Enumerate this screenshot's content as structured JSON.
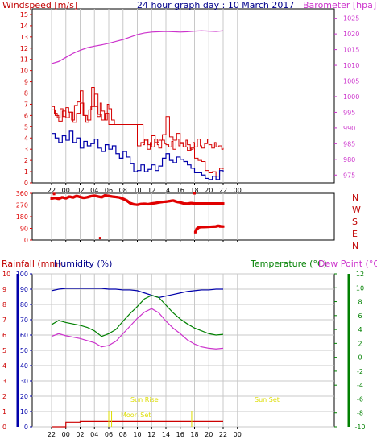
{
  "title": "24 hour graph day : 10 March 2017",
  "colors": {
    "wind": "#d40000",
    "gust": "#d40000",
    "avg_wind": "#0000aa",
    "baro": "#cc33cc",
    "direction": "#e00000",
    "humidity": "#0000aa",
    "temperature": "#008000",
    "dewpoint": "#cc33cc",
    "rain": "#cc0000",
    "sun": "#dddd00",
    "axis": "#000000",
    "grid": "#c8c8c8"
  },
  "labels": {
    "windspeed": "Windspeed [m/s]",
    "barometer": "Barometer [hpa]",
    "rainfall": "Rainfall (mm)",
    "humidity": "Humidity (%)",
    "temperature": "Temperature (°C)",
    "dewpoint": "Dew Point (°C)",
    "sun_rise": "Sun Rise",
    "sun_set": "Sun Set",
    "moon_set": "Moon Set",
    "compass": [
      "N",
      "W",
      "S",
      "E",
      "N"
    ]
  },
  "chart_data": [
    {
      "id": "wind",
      "type": "line",
      "x_ticks": [
        "22",
        "00",
        "02",
        "04",
        "06",
        "08",
        "10",
        "12",
        "14",
        "16",
        "18",
        "20",
        "22",
        "00"
      ],
      "y_left": {
        "label": "Windspeed [m/s]",
        "ticks": [
          "0",
          "1",
          "2",
          "3",
          "4",
          "5",
          "6",
          "7",
          "8",
          "9",
          "10",
          "11",
          "12",
          "13",
          "14",
          "15"
        ],
        "ylim": [
          0,
          15.5
        ]
      },
      "y_right": {
        "label": "Barometer [hpa]",
        "ticks": [
          "975",
          "980",
          "985",
          "990",
          "995",
          "1000",
          "1005",
          "1010",
          "1015",
          "1020",
          "1025"
        ],
        "ylim": [
          972.5,
          1028
        ]
      },
      "series": [
        {
          "key": "gust",
          "x": [
            0.0,
            0.4,
            0.8,
            1.2,
            1.6,
            2.0,
            2.4,
            2.8,
            3.2,
            3.6,
            4.0,
            4.4,
            4.8,
            5.2,
            5.6,
            6.0,
            6.4,
            6.8,
            7.0,
            7.4,
            7.8,
            8.0,
            8.4,
            8.8,
            9.0,
            9.4,
            9.8,
            10.0,
            10.4,
            10.8,
            11.0,
            11.4,
            11.8,
            12.0,
            12.4,
            12.8,
            13.0,
            13.4,
            13.8,
            14.0,
            14.4,
            14.8,
            15.0,
            15.4,
            15.8,
            16.0,
            16.4,
            16.8,
            17.0,
            17.4,
            17.8,
            18.0,
            18.4,
            18.8,
            19.0,
            19.4,
            19.8,
            20.0,
            20.4,
            20.8,
            21.0,
            21.4,
            21.8,
            22.0,
            22.4,
            22.8,
            23.0,
            23.4,
            23.8,
            24.0
          ],
          "values": [
            6.8,
            6.2,
            5.8,
            6.6,
            5.9,
            6.7,
            6.3,
            5.6,
            6.9,
            7.2,
            8.2,
            6.0,
            5.4,
            6.5,
            8.5,
            6.8,
            5.9,
            7.1,
            6.4,
            5.6,
            7.0,
            6.6,
            5.6,
            5.2,
            5.2,
            5.2,
            5.2,
            5.2,
            5.2,
            5.2,
            5.2,
            5.2,
            5.2,
            5.2,
            5.2,
            3.4,
            3.8,
            3.0,
            3.6,
            3.2,
            3.9,
            3.4,
            3.1,
            3.8,
            3.5,
            3.4,
            3.2,
            3.7,
            3.0,
            3.9,
            3.3,
            3.5,
            3.2,
            3.8,
            3.4,
            3.0,
            3.6,
            3.2,
            3.9,
            3.3,
            3.1,
            3.5,
            3.9,
            3.4,
            3.1,
            3.6,
            3.2,
            3.3,
            3.0,
            3.1
          ],
          "name": ""
        },
        {
          "key": "wind_red",
          "x": [
            0.0,
            0.5,
            1.0,
            1.5,
            2.0,
            2.5,
            3.0,
            3.5,
            4.0,
            4.5,
            5.0,
            5.5,
            6.0,
            6.5,
            7.0,
            7.5,
            8.0,
            8.5,
            9.0,
            9.5,
            10.0,
            10.5,
            11.0,
            11.5,
            12.0,
            12.5,
            13.0,
            13.5,
            14.0,
            14.5,
            15.0,
            15.5,
            16.0,
            16.5,
            17.0,
            17.5,
            18.0,
            18.5,
            19.0,
            19.5,
            20.0,
            20.5,
            21.0,
            21.5,
            22.0,
            22.5,
            23.0,
            23.5,
            24.0
          ],
          "values": [
            6.5,
            6.0,
            5.5,
            6.4,
            5.8,
            6.3,
            5.4,
            6.2,
            7.1,
            6.0,
            5.6,
            6.8,
            7.9,
            6.1,
            5.6,
            6.2,
            5.2,
            5.2,
            5.2,
            5.2,
            5.2,
            5.2,
            5.2,
            5.2,
            3.3,
            3.6,
            3.9,
            3.4,
            4.2,
            3.6,
            3.8,
            4.3,
            5.9,
            4.1,
            3.8,
            4.4,
            3.6,
            3.2,
            2.9,
            3.1,
            2.2,
            2.0,
            1.9,
            1.1,
            0.9,
            1.0,
            0.6,
            1.3,
            1.2
          ],
          "name": ""
        },
        {
          "key": "avg_wind",
          "x": [
            0.0,
            0.5,
            1.0,
            1.5,
            2.0,
            2.5,
            3.0,
            3.5,
            4.0,
            4.5,
            5.0,
            5.5,
            6.0,
            6.5,
            7.0,
            7.5,
            8.0,
            8.5,
            9.0,
            9.5,
            10.0,
            10.5,
            11.0,
            11.5,
            12.0,
            12.5,
            13.0,
            13.5,
            14.0,
            14.5,
            15.0,
            15.5,
            16.0,
            16.5,
            17.0,
            17.5,
            18.0,
            18.5,
            19.0,
            19.5,
            20.0,
            20.5,
            21.0,
            21.5,
            22.0,
            22.5,
            23.0,
            23.5,
            24.0
          ],
          "values": [
            4.4,
            4.0,
            3.6,
            4.2,
            3.8,
            4.6,
            3.6,
            4.0,
            3.1,
            3.7,
            3.3,
            3.5,
            3.9,
            3.1,
            2.8,
            3.4,
            3.0,
            3.3,
            2.6,
            2.2,
            2.8,
            2.3,
            1.7,
            1.0,
            1.1,
            1.6,
            1.0,
            1.2,
            1.6,
            1.1,
            1.5,
            2.2,
            2.6,
            2.0,
            1.8,
            2.3,
            2.1,
            1.9,
            1.6,
            1.3,
            0.9,
            0.9,
            0.7,
            0.4,
            0.3,
            0.6,
            0.3,
            1.1,
            1.0
          ],
          "name": ""
        },
        {
          "key": "baro",
          "axis": "right",
          "x": [
            0,
            1,
            2,
            3,
            4,
            5,
            6,
            7,
            8,
            9,
            10,
            11,
            12,
            13,
            14,
            15,
            16,
            17,
            18,
            19,
            20,
            21,
            22,
            23,
            24
          ],
          "values": [
            1010.5,
            1011.2,
            1012.5,
            1013.8,
            1014.8,
            1015.6,
            1016.1,
            1016.5,
            1017.0,
            1017.6,
            1018.2,
            1019.0,
            1019.8,
            1020.3,
            1020.6,
            1020.7,
            1020.8,
            1020.7,
            1020.6,
            1020.7,
            1020.9,
            1021.0,
            1020.9,
            1020.8,
            1021.0
          ],
          "name": ""
        }
      ]
    },
    {
      "id": "direction",
      "type": "scatter",
      "x_ticks": [
        "22",
        "00",
        "02",
        "04",
        "06",
        "08",
        "10",
        "12",
        "14",
        "16",
        "18",
        "20",
        "22",
        "00"
      ],
      "y_left": {
        "ticks": [
          "0",
          "90",
          "180",
          "270",
          "360"
        ],
        "ylim": [
          0,
          360
        ]
      },
      "y_right": {
        "ticks": [
          "N",
          "W",
          "S",
          "E",
          "N"
        ]
      },
      "series": [
        {
          "key": "dir",
          "x": [
            0.0,
            0.5,
            1.0,
            1.5,
            2.0,
            2.5,
            3.0,
            3.5,
            4.0,
            4.5,
            5.0,
            5.5,
            6.0,
            6.5,
            7.0,
            7.5,
            8.0,
            8.5,
            9.0,
            9.5,
            10.0,
            10.5,
            11.0,
            11.5,
            12.0,
            12.5,
            13.0,
            13.5,
            14.0,
            14.5,
            15.0,
            15.5,
            16.0,
            16.5,
            17.0,
            17.5,
            18.0,
            18.5,
            19.0,
            19.5,
            20.0,
            20.5,
            21.0,
            21.5,
            22.0,
            22.5,
            23.0,
            23.5,
            24.0
          ],
          "values": [
            320,
            325,
            318,
            330,
            322,
            335,
            328,
            340,
            332,
            325,
            330,
            338,
            342,
            336,
            330,
            344,
            340,
            335,
            332,
            328,
            318,
            305,
            285,
            275,
            272,
            278,
            280,
            276,
            282,
            285,
            290,
            294,
            296,
            300,
            305,
            295,
            290,
            282,
            280,
            285,
            282,
            282,
            282,
            282,
            282,
            282,
            282,
            282,
            282
          ],
          "name": ""
        },
        {
          "key": "dir_late",
          "x": [
            20.1,
            20.3,
            20.6,
            21.0,
            21.5,
            22.0,
            22.5,
            23.0,
            23.3,
            23.6,
            24.0
          ],
          "values": [
            60,
            85,
            98,
            100,
            101,
            102,
            103,
            104,
            110,
            106,
            104
          ],
          "name": ""
        },
        {
          "key": "dir_outliers",
          "x": [
            0.35,
            6.8,
            20.0,
            23.6
          ],
          "values": [
            355,
            15,
            360,
            104
          ],
          "name": ""
        }
      ]
    },
    {
      "id": "climate",
      "type": "line",
      "x_ticks": [
        "22",
        "00",
        "02",
        "04",
        "06",
        "08",
        "10",
        "12",
        "14",
        "16",
        "18",
        "20",
        "22",
        "00"
      ],
      "y_left": {
        "label": "Rainfall (mm)",
        "ticks": [
          "0",
          "1",
          "2",
          "3",
          "4",
          "5",
          "6",
          "7",
          "8",
          "9",
          "10"
        ],
        "ylim": [
          0,
          10
        ]
      },
      "y_left2": {
        "label": "Humidity (%)",
        "ticks": [
          "0",
          "10",
          "20",
          "30",
          "40",
          "50",
          "60",
          "70",
          "80",
          "90",
          "100"
        ],
        "ylim": [
          0,
          100
        ]
      },
      "y_right": {
        "label": "Temperature (°C)",
        "ticks": [
          "12",
          "10",
          "8",
          "6",
          "4",
          "2",
          "0",
          "-2",
          "-4",
          "-6",
          "-8",
          "-10"
        ],
        "ylim": [
          -10,
          12
        ]
      },
      "series": [
        {
          "key": "humidity",
          "x": [
            0,
            1,
            2,
            3,
            4,
            5,
            6,
            7,
            8,
            9,
            10,
            11,
            12,
            13,
            14,
            15,
            16,
            17,
            18,
            19,
            20,
            21,
            22,
            23,
            24
          ],
          "values": [
            89,
            90,
            90.5,
            90.5,
            90.5,
            90.5,
            90.5,
            90.5,
            90,
            90,
            89.5,
            89.5,
            89,
            87.5,
            86,
            84.5,
            85.5,
            86.5,
            87.5,
            88.5,
            89,
            89.5,
            89.5,
            90,
            90
          ],
          "name": ""
        },
        {
          "key": "temperature",
          "x": [
            0,
            1,
            2,
            3,
            4,
            5,
            6,
            7,
            8,
            9,
            10,
            11,
            12,
            13,
            14,
            15,
            16,
            17,
            18,
            19,
            20,
            21,
            22,
            23,
            24
          ],
          "values": [
            4.7,
            5.3,
            5.0,
            4.8,
            4.6,
            4.3,
            3.8,
            3.0,
            3.4,
            4.0,
            5.2,
            6.3,
            7.3,
            8.4,
            8.9,
            8.6,
            7.5,
            6.4,
            5.5,
            4.8,
            4.2,
            3.8,
            3.4,
            3.2,
            3.3
          ],
          "name": ""
        },
        {
          "key": "dewpoint",
          "x": [
            0,
            1,
            2,
            3,
            4,
            5,
            6,
            7,
            8,
            9,
            10,
            11,
            12,
            13,
            14,
            15,
            16,
            17,
            18,
            19,
            20,
            21,
            22,
            23,
            24
          ],
          "values": [
            3.0,
            3.4,
            3.1,
            2.9,
            2.7,
            2.4,
            2.1,
            1.5,
            1.7,
            2.3,
            3.4,
            4.5,
            5.6,
            6.5,
            7.0,
            6.4,
            5.2,
            4.2,
            3.4,
            2.5,
            1.9,
            1.5,
            1.3,
            1.2,
            1.3
          ],
          "name": ""
        },
        {
          "key": "rain",
          "x": [
            0,
            1,
            2,
            3,
            4,
            5,
            6,
            6.5,
            7,
            8,
            9,
            10,
            11,
            12,
            13,
            14,
            15,
            16,
            17,
            18,
            19,
            20,
            21,
            22,
            23,
            24
          ],
          "values": [
            0,
            0,
            0.3,
            0.3,
            0.35,
            0.35,
            0.35,
            0.35,
            0.35,
            0.35,
            0.35,
            0.35,
            0.35,
            0.35,
            0.35,
            0.35,
            0.35,
            0.35,
            0.35,
            0.35,
            0.35,
            0.35,
            0.35,
            0.35,
            0.35,
            0.35
          ],
          "name": ""
        }
      ],
      "events": [
        {
          "key": "sun_rise",
          "x": 8.4
        },
        {
          "key": "sun_set",
          "x": 19.6
        },
        {
          "key": "moon_set",
          "x": 8.0
        }
      ]
    }
  ]
}
